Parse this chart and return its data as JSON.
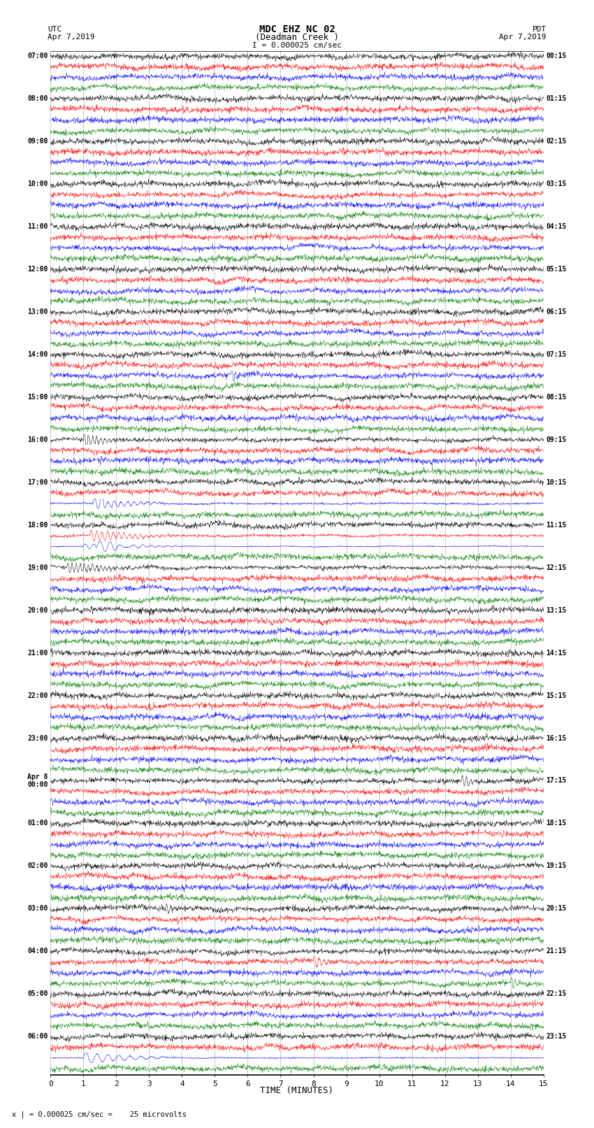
{
  "title_line1": "MDC EHZ NC 02",
  "title_line2": "(Deadman Creek )",
  "title_scale": "I = 0.000025 cm/sec",
  "left_label_top": "UTC",
  "left_label_date": "Apr 7,2019",
  "right_label_top": "PDT",
  "right_label_date": "Apr 7,2019",
  "xlabel": "TIME (MINUTES)",
  "bottom_note": "x | = 0.000025 cm/sec =    25 microvolts",
  "x_min": 0,
  "x_max": 15,
  "background_color": "#ffffff",
  "trace_colors": [
    "black",
    "red",
    "blue",
    "green"
  ],
  "grid_color": "#888888",
  "utc_labels": [
    "07:00",
    "08:00",
    "09:00",
    "10:00",
    "11:00",
    "12:00",
    "13:00",
    "14:00",
    "15:00",
    "16:00",
    "17:00",
    "18:00",
    "19:00",
    "20:00",
    "21:00",
    "22:00",
    "23:00",
    "Apr 8\n00:00",
    "01:00",
    "02:00",
    "03:00",
    "04:00",
    "05:00",
    "06:00"
  ],
  "pdt_labels": [
    "00:15",
    "01:15",
    "02:15",
    "03:15",
    "04:15",
    "05:15",
    "06:15",
    "07:15",
    "08:15",
    "09:15",
    "10:15",
    "11:15",
    "12:15",
    "13:15",
    "14:15",
    "15:15",
    "16:15",
    "17:15",
    "18:15",
    "19:15",
    "20:15",
    "21:15",
    "22:15",
    "23:15"
  ],
  "n_hours": 24,
  "traces_per_hour": 4,
  "noise_base": 0.35,
  "fig_width": 8.5,
  "fig_height": 16.13,
  "dpi": 100
}
